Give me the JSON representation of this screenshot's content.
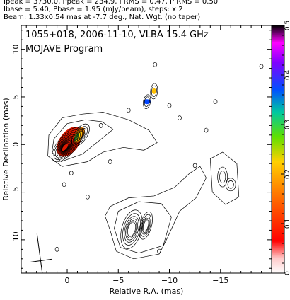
{
  "header": {
    "line1": "Ipeak = 3730.0, Ppeak = 234.9, I RMS = 0.47, P RMS = 0.50",
    "line2": "Ibase = 5.40, Pbase = 1.95 (mJy/beam), steps: x 2",
    "line3": "Beam: 1.33x0.54 mas at -7.7 deg., Nat. Wgt. (no taper)"
  },
  "chart_data": {
    "type": "contour",
    "title": "1055+018, 2006-11-10, VLBA 15.4 GHz",
    "subtitle": "MOJAVE Program",
    "xlabel": "Relative R.A. (mas)",
    "ylabel": "Relative Declination (mas)",
    "xlim": [
      4.5,
      -20.0
    ],
    "ylim": [
      -13.5,
      12.5
    ],
    "x_ticks": [
      0,
      -5,
      -10,
      -15
    ],
    "x_tick_labels": [
      "0",
      "−5",
      "−10",
      "−15"
    ],
    "y_ticks": [
      10,
      5,
      0,
      -5,
      -10
    ],
    "y_tick_labels": [
      "10",
      "5",
      "0",
      "−5",
      "−10"
    ],
    "colorbar": {
      "min": 0,
      "max": 0.5,
      "ticks": [
        0,
        0.1,
        0.2,
        0.3,
        0.4,
        0.5
      ],
      "tick_labels": [
        "0",
        "0.1",
        "0.2",
        "0.3",
        "0.4",
        "0.5"
      ]
    },
    "contour_levels_mjy_per_beam": [
      5.4,
      10.8,
      21.6,
      43.2,
      86.4,
      172.8,
      345.6,
      691.2,
      1382.4,
      2764.8
    ],
    "components": [
      {
        "x": 0.0,
        "y": 0.0,
        "peak_mjy": 3730.0
      },
      {
        "x": -1.3,
        "y": 1.0
      },
      {
        "x": -7.8,
        "y": 4.5
      },
      {
        "x": -8.5,
        "y": 5.6
      },
      {
        "x": -6.3,
        "y": -8.9
      },
      {
        "x": -7.7,
        "y": -8.5
      },
      {
        "x": -16.0,
        "y": -4.2
      },
      {
        "x": -15.2,
        "y": -3.4
      }
    ],
    "beam": {
      "major_mas": 1.33,
      "minor_mas": 0.54,
      "pa_deg": -7.7,
      "x": 2.6,
      "y": -12.2
    }
  }
}
